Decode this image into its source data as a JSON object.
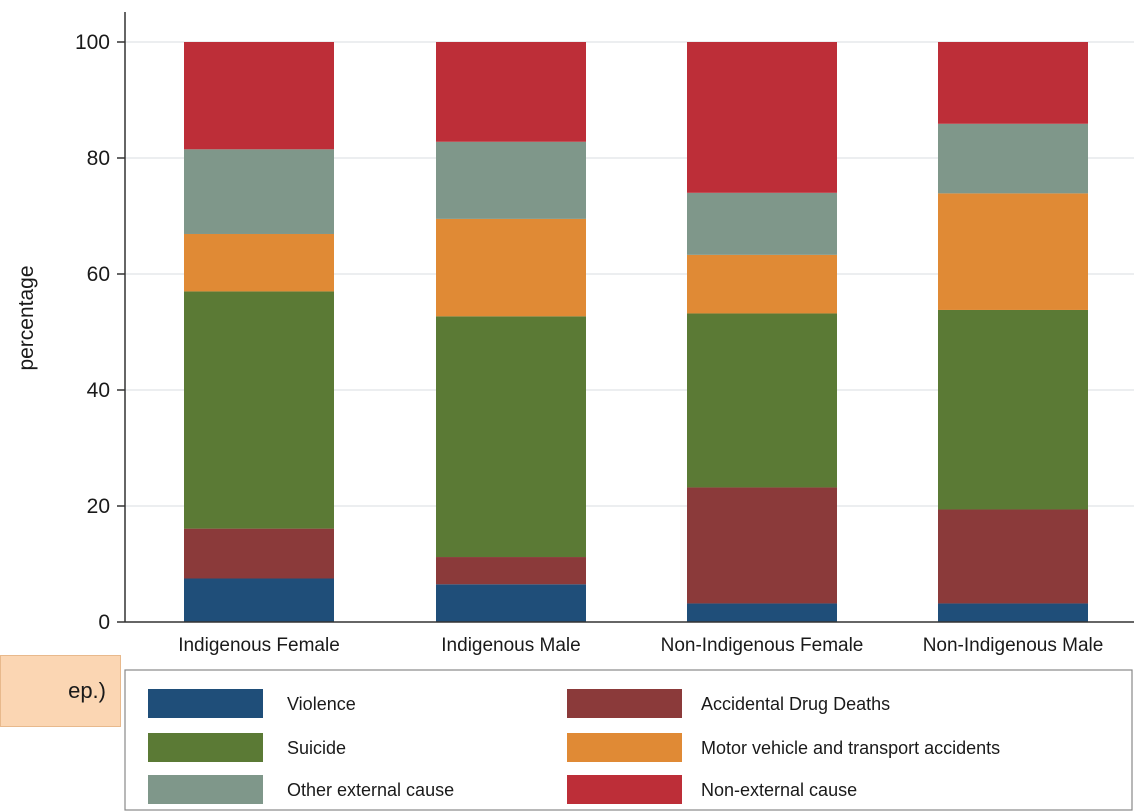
{
  "side_note": "ep.)",
  "chart_data": {
    "type": "bar",
    "stacked": true,
    "categories": [
      "Indigenous Female",
      "Indigenous Male",
      "Non-Indigenous Female",
      "Non-Indigenous Male"
    ],
    "ylabel": "percentage",
    "ylim": [
      0,
      100
    ],
    "yticks": [
      0,
      20,
      40,
      60,
      80,
      100
    ],
    "grid": true,
    "legend_position": "bottom",
    "series": [
      {
        "name": "Violence",
        "color": "#1f4e79",
        "values": [
          7.5,
          6.5,
          3.2,
          3.2
        ]
      },
      {
        "name": "Accidental Drug Deaths",
        "color": "#8b3a3a",
        "values": [
          8.6,
          4.7,
          20.0,
          16.2
        ]
      },
      {
        "name": "Suicide",
        "color": "#5b7a35",
        "values": [
          40.9,
          41.5,
          30.0,
          34.4
        ]
      },
      {
        "name": "Motor vehicle and transport accidents",
        "color": "#e08a35",
        "values": [
          9.9,
          16.8,
          10.1,
          20.1
        ]
      },
      {
        "name": "Other external cause",
        "color": "#7f978a",
        "values": [
          14.6,
          13.3,
          10.7,
          12.0
        ]
      },
      {
        "name": "Non-external cause",
        "color": "#bd2e38",
        "values": [
          18.5,
          17.2,
          26.0,
          14.1
        ]
      }
    ],
    "legend_order": [
      "Violence",
      "Accidental Drug Deaths",
      "Suicide",
      "Motor vehicle and transport accidents",
      "Other external cause",
      "Non-external cause"
    ]
  }
}
